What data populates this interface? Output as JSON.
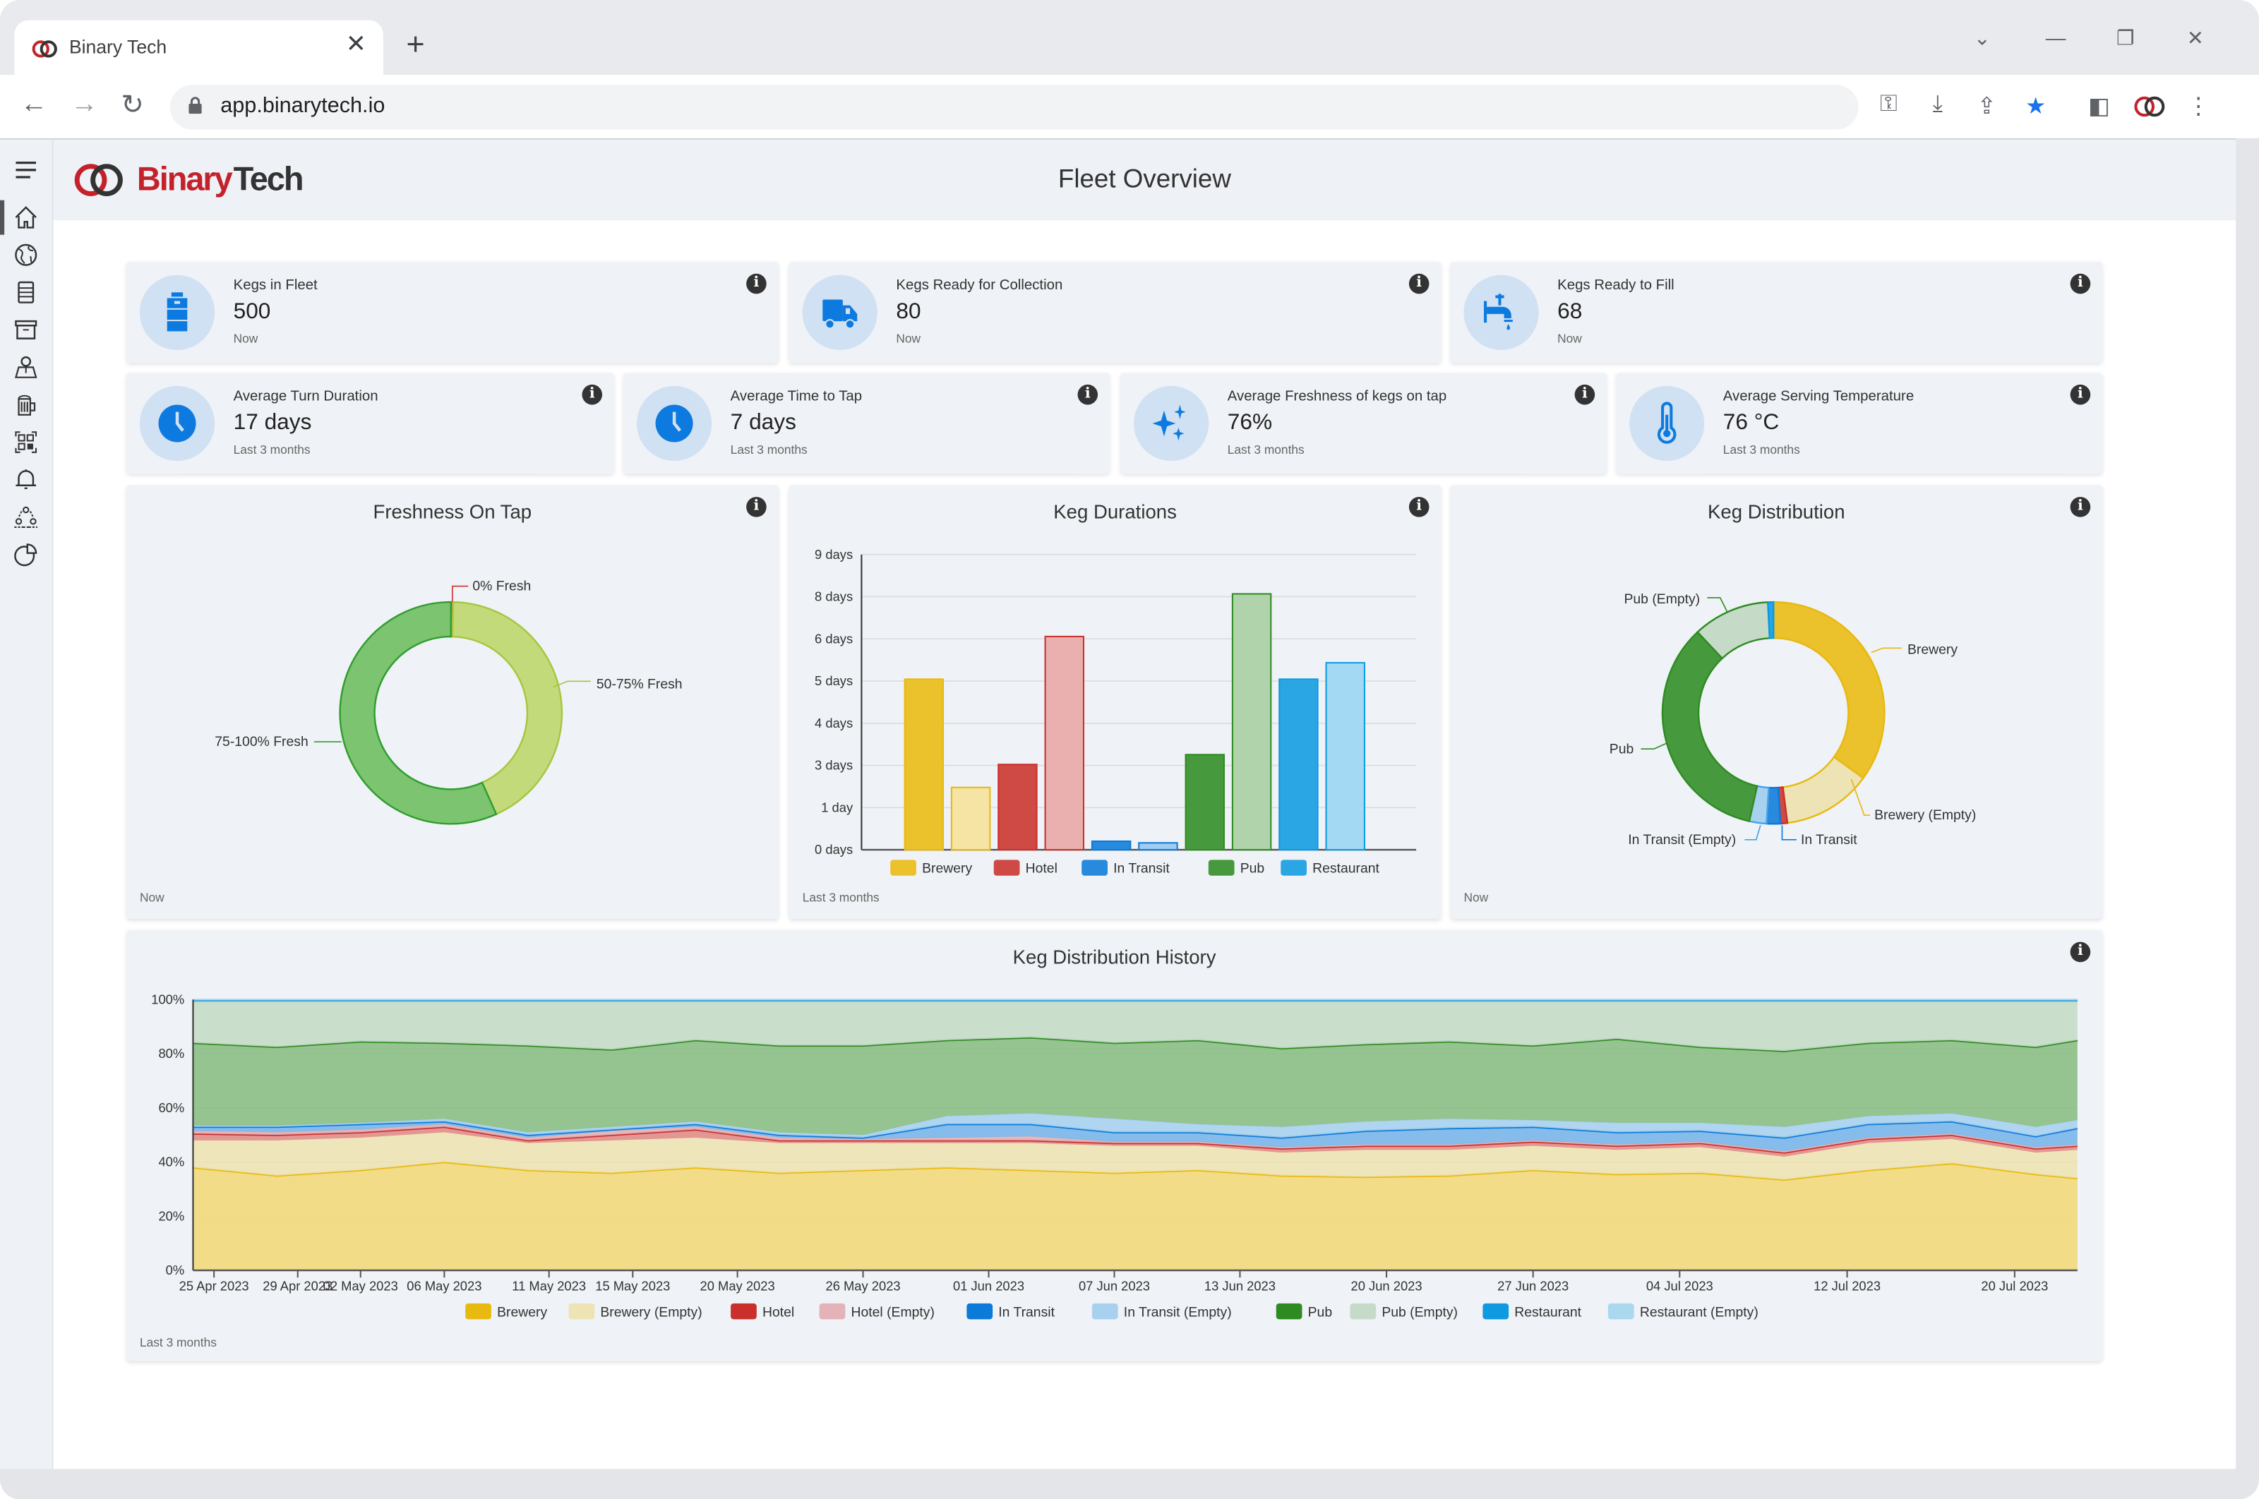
{
  "browser": {
    "tab_title": "Binary Tech",
    "url": "app.binarytech.io",
    "new_tab": "+",
    "close_tab": "✕"
  },
  "header": {
    "logo_text": "BinaryTech",
    "title": "Fleet Overview"
  },
  "sidebar": {
    "items": [
      "home-icon",
      "globe-icon",
      "keg-icon",
      "box-icon",
      "map-pin-icon",
      "beer-mug-icon",
      "qr-code-icon",
      "bell-icon",
      "users-network-icon",
      "pie-chart-icon"
    ],
    "active": 0
  },
  "kpis_row1": [
    {
      "label": "Kegs in Fleet",
      "value": "500",
      "sub": "Now",
      "icon": "keg-icon"
    },
    {
      "label": "Kegs Ready for Collection",
      "value": "80",
      "sub": "Now",
      "icon": "truck-icon"
    },
    {
      "label": "Kegs Ready to Fill",
      "value": "68",
      "sub": "Now",
      "icon": "tap-icon"
    }
  ],
  "kpis_row2": [
    {
      "label": "Average Turn Duration",
      "value": "17 days",
      "sub": "Last 3 months",
      "icon": "clock-icon"
    },
    {
      "label": "Average Time to Tap",
      "value": "7 days",
      "sub": "Last 3 months",
      "icon": "clock-icon"
    },
    {
      "label": "Average Freshness of kegs on tap",
      "value": "76%",
      "sub": "Last 3 months",
      "icon": "sparkle-icon"
    },
    {
      "label": "Average Serving Temperature",
      "value": "76 °C",
      "sub": "Last 3 months",
      "icon": "thermometer-icon"
    }
  ],
  "colors": {
    "accent": "#0d7ae0",
    "Brewery": "#e8b90f",
    "Brewery (Empty)": "#ede3b5",
    "Hotel": "#c9302c",
    "Hotel (Empty)": "#e3b3b8",
    "In Transit": "#0b7ad8",
    "In Transit (Empty)": "#a8d1f0",
    "Pub": "#2e8b22",
    "Pub (Empty)": "#c5dbc8",
    "Restaurant": "#0d9ae0",
    "Restaurant (Empty)": "#a9d8ef"
  },
  "chart_data": [
    {
      "type": "pie",
      "title": "Freshness On Tap",
      "footer": "Now",
      "donut": true,
      "slices": [
        {
          "label": "0% Fresh",
          "value": 0.3
        },
        {
          "label": "50-75% Fresh",
          "value": 43
        },
        {
          "label": "75-100% Fresh",
          "value": 56.7
        }
      ]
    },
    {
      "type": "bar",
      "title": "Keg Durations",
      "footer": "Last 3 months",
      "ylim": [
        0,
        9
      ],
      "y_ticks": [
        "0 days",
        "1 day",
        "3 days",
        "4 days",
        "5 days",
        "6 days",
        "8 days",
        "9 days"
      ],
      "legend": [
        "Brewery",
        "Hotel",
        "In Transit",
        "Pub",
        "Restaurant"
      ],
      "bars": [
        {
          "group": "Brewery",
          "empty": false,
          "value": 5.2
        },
        {
          "group": "Brewery",
          "empty": true,
          "value": 1.9
        },
        {
          "group": "Hotel",
          "empty": false,
          "value": 2.6
        },
        {
          "group": "Hotel",
          "empty": true,
          "value": 6.5
        },
        {
          "group": "In Transit",
          "empty": false,
          "value": 0.26
        },
        {
          "group": "In Transit",
          "empty": true,
          "value": 0.21
        },
        {
          "group": "Pub",
          "empty": false,
          "value": 2.9
        },
        {
          "group": "Pub",
          "empty": true,
          "value": 7.8
        },
        {
          "group": "Restaurant",
          "empty": false,
          "value": 5.2
        },
        {
          "group": "Restaurant",
          "empty": true,
          "value": 5.7
        }
      ]
    },
    {
      "type": "pie",
      "title": "Keg Distribution",
      "footer": "Now",
      "donut": true,
      "slices": [
        {
          "label": "Brewery",
          "value": 35
        },
        {
          "label": "Brewery (Empty)",
          "value": 13
        },
        {
          "label": "Hotel",
          "value": 1
        },
        {
          "label": "In Transit",
          "value": 2
        },
        {
          "label": "In Transit (Empty)",
          "value": 2.5
        },
        {
          "label": "Pub",
          "value": 34.5
        },
        {
          "label": "Pub (Empty)",
          "value": 11.2
        },
        {
          "label": "Restaurant",
          "value": 0.8
        }
      ]
    },
    {
      "type": "area",
      "stacked": true,
      "title": "Keg Distribution History",
      "footer": "Last 3 months",
      "ylim": [
        0,
        100
      ],
      "y_ticks": [
        "0%",
        "20%",
        "40%",
        "60%",
        "80%",
        "100%"
      ],
      "grid": true,
      "legend_position": "bottom",
      "x_ticks": [
        {
          "date": "2023-04-25",
          "label": "25 Apr 2023"
        },
        {
          "date": "2023-04-29",
          "label": "29 Apr 2023"
        },
        {
          "date": "2023-05-02",
          "label": "02 May 2023"
        },
        {
          "date": "2023-05-06",
          "label": "06 May 2023"
        },
        {
          "date": "2023-05-11",
          "label": "11 May 2023"
        },
        {
          "date": "2023-05-15",
          "label": "15 May 2023"
        },
        {
          "date": "2023-05-20",
          "label": "20 May 2023"
        },
        {
          "date": "2023-05-26",
          "label": "26 May 2023"
        },
        {
          "date": "2023-06-01",
          "label": "01 Jun 2023"
        },
        {
          "date": "2023-06-07",
          "label": "07 Jun 2023"
        },
        {
          "date": "2023-06-13",
          "label": "13 Jun 2023"
        },
        {
          "date": "2023-06-20",
          "label": "20 Jun 2023"
        },
        {
          "date": "2023-06-27",
          "label": "27 Jun 2023"
        },
        {
          "date": "2023-07-04",
          "label": "04 Jul 2023"
        },
        {
          "date": "2023-07-12",
          "label": "12 Jul 2023"
        },
        {
          "date": "2023-07-20",
          "label": "20 Jul 2023"
        }
      ],
      "x": [
        "2023-04-24",
        "2023-04-28",
        "2023-05-02",
        "2023-05-06",
        "2023-05-10",
        "2023-05-14",
        "2023-05-18",
        "2023-05-22",
        "2023-05-26",
        "2023-05-30",
        "2023-06-03",
        "2023-06-07",
        "2023-06-11",
        "2023-06-15",
        "2023-06-19",
        "2023-06-23",
        "2023-06-27",
        "2023-07-01",
        "2023-07-05",
        "2023-07-09",
        "2023-07-13",
        "2023-07-17",
        "2023-07-21",
        "2023-07-23"
      ],
      "series": [
        {
          "name": "Brewery",
          "values": [
            38,
            35,
            37,
            40,
            37,
            36,
            38,
            36,
            37,
            38,
            37,
            36,
            37,
            35,
            34.5,
            35,
            37,
            35.5,
            36,
            33.5,
            37,
            39.5,
            35.5,
            34
          ]
        },
        {
          "name": "Brewery (Empty)",
          "values": [
            10,
            13,
            12,
            11,
            10,
            12,
            11,
            11,
            10,
            9,
            10,
            10,
            9,
            8.5,
            10,
            9.5,
            9,
            9,
            9.5,
            8.5,
            10,
            9,
            8,
            10.5
          ]
        },
        {
          "name": "Hotel",
          "values": [
            2.5,
            2,
            2,
            2,
            1,
            2,
            3,
            1,
            1,
            1,
            1,
            1,
            1,
            1.5,
            1.5,
            1.5,
            1.5,
            1.5,
            1.5,
            1.5,
            1.5,
            1.5,
            1.5,
            1.5
          ]
        },
        {
          "name": "Hotel (Empty)",
          "values": [
            1,
            1,
            1,
            1,
            1,
            1.5,
            1,
            1,
            0.5,
            1,
            1.5,
            0.5,
            0.5,
            0.5,
            0.5,
            0.5,
            0.5,
            0.5,
            0.5,
            0.5,
            0.5,
            0.5,
            0.5,
            0.5
          ]
        },
        {
          "name": "In Transit",
          "values": [
            1.5,
            2,
            2,
            1,
            1,
            0.5,
            1,
            1,
            0.5,
            5,
            4.5,
            3.5,
            3.5,
            3.5,
            5,
            6,
            5,
            4.5,
            4,
            5,
            5,
            4.5,
            4,
            6
          ]
        },
        {
          "name": "In Transit (Empty)",
          "values": [
            0.5,
            0.5,
            0.5,
            1,
            1,
            1,
            1,
            1,
            1,
            3,
            4,
            5,
            3,
            4,
            3.5,
            3.5,
            2.5,
            3.5,
            3,
            4,
            3,
            3,
            3.5,
            3
          ]
        },
        {
          "name": "Pub",
          "values": [
            30.5,
            29,
            30,
            28,
            32,
            28.5,
            30,
            32,
            33,
            28,
            28,
            28,
            31,
            29,
            28.5,
            28.5,
            27.5,
            31,
            28,
            28,
            27,
            27,
            29.5,
            29.5
          ]
        },
        {
          "name": "Pub (Empty)",
          "values": [
            15.2,
            16.7,
            14.7,
            15.2,
            16.2,
            17.7,
            14.2,
            16.2,
            16.2,
            14.2,
            13.2,
            15.2,
            14.2,
            17.2,
            15.7,
            14.7,
            16.2,
            13.7,
            16.7,
            18.2,
            15.2,
            14.2,
            16.7,
            14.2
          ]
        },
        {
          "name": "Restaurant",
          "values": [
            0.6,
            0.6,
            0.6,
            0.6,
            0.6,
            0.6,
            0.6,
            0.6,
            0.6,
            0.6,
            0.6,
            0.6,
            0.6,
            0.6,
            0.6,
            0.6,
            0.6,
            0.6,
            0.6,
            0.6,
            0.6,
            0.6,
            0.6,
            0.6
          ]
        },
        {
          "name": "Restaurant (Empty)",
          "values": [
            0.2,
            0.2,
            0.2,
            0.2,
            0.2,
            0.2,
            0.2,
            0.2,
            0.2,
            0.2,
            0.2,
            0.2,
            0.2,
            0.2,
            0.2,
            0.2,
            0.2,
            0.2,
            0.2,
            0.2,
            0.2,
            0.2,
            0.2,
            0.2
          ]
        }
      ]
    }
  ]
}
